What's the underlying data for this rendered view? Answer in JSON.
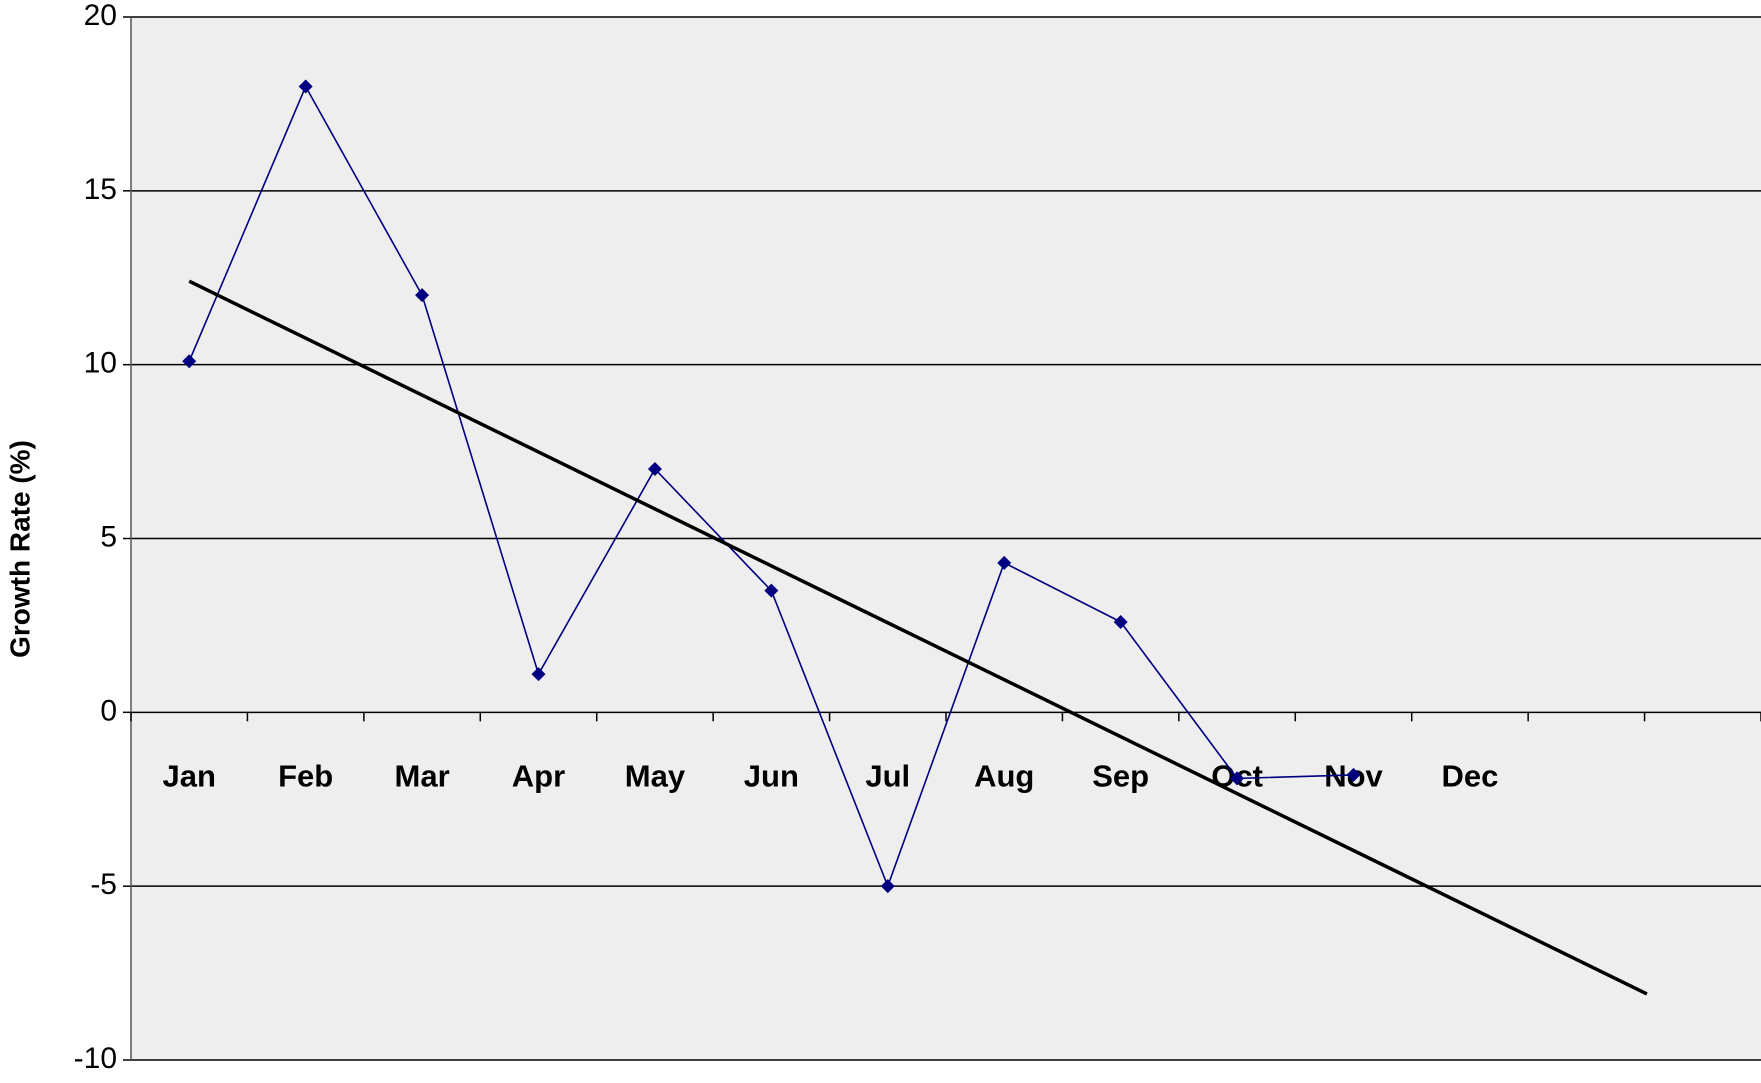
{
  "chart_data": {
    "type": "line",
    "y_label": "Growth Rate (%)",
    "categories": [
      "Jan",
      "Feb",
      "Mar",
      "Apr",
      "May",
      "Jun",
      "Jul",
      "Aug",
      "Sep",
      "Oct",
      "Nov",
      "Dec",
      null,
      null
    ],
    "series": [
      {
        "color": "#000080",
        "values": [
          10.1,
          18,
          12,
          1.1,
          7,
          3.5,
          -5,
          4.3,
          2.6,
          -1.9,
          -1.8,
          null,
          null,
          null
        ]
      }
    ],
    "trendline": {
      "color": "#000000",
      "start": 12.4,
      "end": -8.1
    },
    "ylim": [
      -10,
      20
    ],
    "yticks": [
      -10,
      -5,
      0,
      5,
      10,
      15,
      20
    ],
    "grid": true
  }
}
